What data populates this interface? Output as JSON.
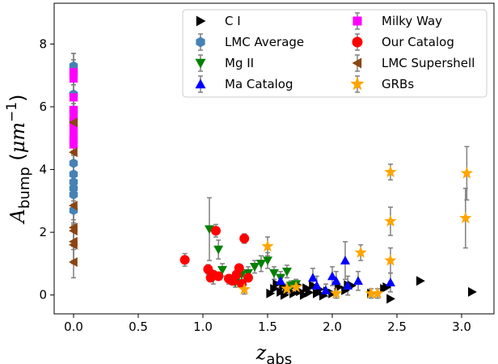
{
  "chart_data": {
    "type": "scatter",
    "title": "",
    "xlabel": "z_abs",
    "ylabel": "A_bump (μm^-1)",
    "xlim": [
      -0.15,
      3.25
    ],
    "ylim": [
      -0.6,
      9.3
    ],
    "xticks": [
      0,
      0.5,
      1,
      1.5,
      2,
      2.5,
      3
    ],
    "xtick_labels": [
      "0.0",
      "0.5",
      "1.0",
      "1.5",
      "2.0",
      "2.5",
      "3.0"
    ],
    "yticks": [
      0,
      2,
      4,
      6,
      8
    ],
    "ytick_labels": [
      "0",
      "2",
      "4",
      "6",
      "8"
    ],
    "grid": false,
    "legend_position": "top-right",
    "series": [
      {
        "name": "C I",
        "marker": "triangle-right",
        "color": "#000000",
        "errorbars": false,
        "points": [
          [
            1.52,
            0.05
          ],
          [
            1.55,
            0.2
          ],
          [
            1.57,
            0.35
          ],
          [
            1.6,
            0.1
          ],
          [
            1.62,
            0.28
          ],
          [
            1.63,
            0.0
          ],
          [
            1.65,
            0.15
          ],
          [
            1.68,
            0.25
          ],
          [
            1.7,
            0.05
          ],
          [
            1.73,
            0.32
          ],
          [
            1.75,
            0.12
          ],
          [
            1.78,
            0.0
          ],
          [
            1.8,
            0.22
          ],
          [
            1.82,
            0.08
          ],
          [
            1.85,
            0.3
          ],
          [
            1.88,
            0.05
          ],
          [
            1.9,
            0.18
          ],
          [
            1.93,
            -0.02
          ],
          [
            1.96,
            0.12
          ],
          [
            2.0,
            0.05
          ],
          [
            2.05,
            0.25
          ],
          [
            2.1,
            0.15
          ],
          [
            2.12,
            0.32
          ],
          [
            2.15,
            0.3
          ],
          [
            2.3,
            0.05
          ],
          [
            2.4,
            0.2
          ],
          [
            2.42,
            0.25
          ],
          [
            2.45,
            -0.12
          ],
          [
            2.68,
            0.45
          ],
          [
            3.08,
            0.1
          ]
        ]
      },
      {
        "name": "LMC Average",
        "marker": "hexagon",
        "color": "#4682b4",
        "errorbars": true,
        "points": [
          [
            0.0,
            7.3,
            0.4
          ],
          [
            0.0,
            7.1,
            0.4
          ],
          [
            0.0,
            6.4,
            0.3
          ],
          [
            0.0,
            5.9,
            0.3
          ],
          [
            0.0,
            5.6,
            0.3
          ],
          [
            0.0,
            4.2,
            0.3
          ],
          [
            0.0,
            3.85,
            0.3
          ],
          [
            0.0,
            3.6,
            0.3
          ],
          [
            0.0,
            3.4,
            0.3
          ],
          [
            0.0,
            3.2,
            0.3
          ],
          [
            0.0,
            2.7,
            0.3
          ]
        ]
      },
      {
        "name": "Mg II",
        "marker": "triangle-down",
        "color": "#008000",
        "errorbars": true,
        "points": [
          [
            1.05,
            2.1,
            1.0
          ],
          [
            1.08,
            0.55,
            0.2
          ],
          [
            1.12,
            1.45,
            0.3
          ],
          [
            1.15,
            0.8,
            0.2
          ],
          [
            1.2,
            0.5,
            0.15
          ],
          [
            1.25,
            0.4,
            0.15
          ],
          [
            1.3,
            0.65,
            0.15
          ],
          [
            1.35,
            0.7,
            0.2
          ],
          [
            1.4,
            0.9,
            0.2
          ],
          [
            1.45,
            1.0,
            0.25
          ],
          [
            1.5,
            1.1,
            0.25
          ],
          [
            1.55,
            0.7,
            0.2
          ],
          [
            1.6,
            0.55,
            0.2
          ],
          [
            1.65,
            0.75,
            0.2
          ],
          [
            1.68,
            0.3,
            0.15
          ],
          [
            1.72,
            0.35,
            0.15
          ]
        ]
      },
      {
        "name": "Ma Catalog",
        "marker": "triangle-up",
        "color": "#0000ff",
        "errorbars": true,
        "points": [
          [
            1.6,
            0.45,
            0.2
          ],
          [
            1.85,
            0.55,
            0.3
          ],
          [
            1.88,
            0.3,
            0.3
          ],
          [
            1.95,
            0.15,
            0.2
          ],
          [
            2.0,
            0.6,
            0.3
          ],
          [
            2.03,
            0.45,
            0.3
          ],
          [
            2.1,
            1.1,
            0.6
          ],
          [
            2.12,
            0.3,
            0.3
          ],
          [
            2.2,
            0.45,
            0.3
          ],
          [
            2.45,
            0.4,
            0.3
          ]
        ]
      },
      {
        "name": "Milky Way",
        "marker": "square",
        "color": "#ff00ff",
        "errorbars": true,
        "points": [
          [
            0.0,
            7.1,
            0.6
          ],
          [
            0.0,
            6.9,
            0.6
          ],
          [
            0.0,
            6.3,
            0.6
          ],
          [
            0.0,
            5.9,
            0.5
          ],
          [
            0.0,
            5.7,
            0.5
          ],
          [
            0.0,
            5.5,
            0.5
          ],
          [
            0.0,
            5.3,
            0.5
          ],
          [
            0.0,
            5.1,
            0.5
          ],
          [
            0.0,
            4.95,
            0.5
          ],
          [
            0.0,
            4.8,
            0.5
          ]
        ]
      },
      {
        "name": "Our Catalog",
        "marker": "circle",
        "color": "#ff0000",
        "errorbars": true,
        "points": [
          [
            0.86,
            1.12,
            0.2
          ],
          [
            1.04,
            0.82,
            0.15
          ],
          [
            1.06,
            0.55,
            0.1
          ],
          [
            1.08,
            0.65,
            0.1
          ],
          [
            1.1,
            2.05,
            0.2
          ],
          [
            1.12,
            0.6,
            0.1
          ],
          [
            1.2,
            0.52,
            0.1
          ],
          [
            1.23,
            0.45,
            0.1
          ],
          [
            1.26,
            0.65,
            0.1
          ],
          [
            1.28,
            0.86,
            0.12
          ],
          [
            1.3,
            0.35,
            0.1
          ],
          [
            1.32,
            1.8,
            0.15
          ],
          [
            1.35,
            0.55,
            0.1
          ]
        ]
      },
      {
        "name": "LMC Supershell",
        "marker": "triangle-left",
        "color": "#8b4513",
        "errorbars": true,
        "points": [
          [
            0.0,
            5.5,
            0.6
          ],
          [
            0.0,
            4.55,
            0.6
          ],
          [
            0.0,
            2.85,
            0.6
          ],
          [
            0.0,
            2.15,
            0.6
          ],
          [
            0.0,
            2.05,
            0.6
          ],
          [
            0.0,
            1.7,
            0.6
          ],
          [
            0.0,
            1.6,
            0.6
          ],
          [
            0.0,
            1.05,
            0.5
          ]
        ]
      },
      {
        "name": "GRBs",
        "marker": "star",
        "color": "#ffa500",
        "errorbars": true,
        "points": [
          [
            1.32,
            0.18,
            0.15
          ],
          [
            1.5,
            1.55,
            0.3
          ],
          [
            1.65,
            0.2,
            0.15
          ],
          [
            1.72,
            0.25,
            0.15
          ],
          [
            2.03,
            0.05,
            0.15
          ],
          [
            2.22,
            1.35,
            0.25
          ],
          [
            2.3,
            0.05,
            0.15
          ],
          [
            2.35,
            0.05,
            0.15
          ],
          [
            2.45,
            3.92,
            0.25
          ],
          [
            2.45,
            2.35,
            0.45
          ],
          [
            2.45,
            1.1,
            0.4
          ],
          [
            3.03,
            2.45,
            0.95
          ],
          [
            3.04,
            3.88,
            0.85
          ]
        ]
      }
    ]
  }
}
